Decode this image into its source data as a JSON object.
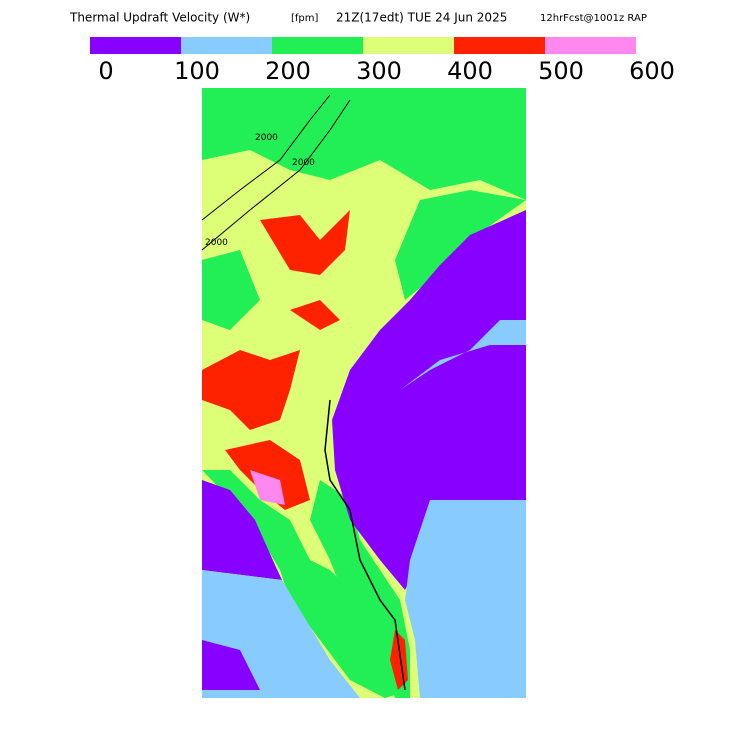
{
  "header": {
    "title": "Thermal Updraft Velocity (W*)",
    "units": "[fpm]",
    "valid_time": "21Z(17edt) TUE 24 Jun 2025",
    "forecast": "12hrFcst@1001z RAP"
  },
  "colorbar": {
    "ticks": [
      0,
      100,
      200,
      300,
      400,
      500,
      600
    ],
    "colors": [
      "#8800ff",
      "#88ccff",
      "#22ee55",
      "#ddff77",
      "#ff2200",
      "#ff88ee"
    ]
  },
  "contours": {
    "label": "2000"
  }
}
